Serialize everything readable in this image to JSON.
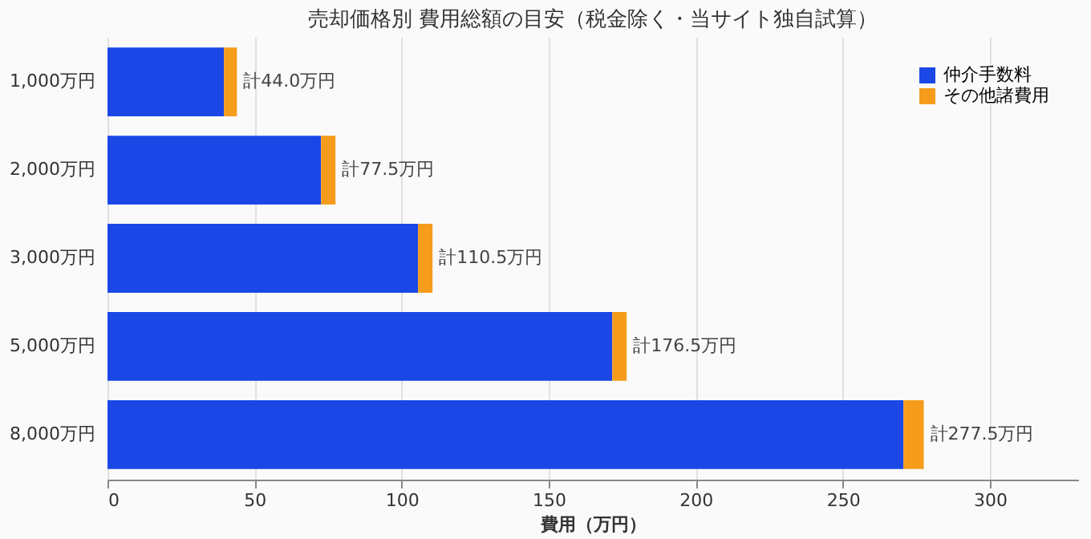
{
  "chart_data": {
    "type": "bar",
    "orientation": "horizontal",
    "stacked": true,
    "title": "売却価格別 費用総額の目安（税金除く・当サイト独自試算）",
    "xlabel": "費用（万円）",
    "categories": [
      "1,000万円",
      "2,000万円",
      "3,000万円",
      "5,000万円",
      "8,000万円"
    ],
    "series": [
      {
        "name": "仲介手数料",
        "color": "#1a47e6",
        "values": [
          39.6,
          72.6,
          105.6,
          171.6,
          270.6
        ]
      },
      {
        "name": "その他諸費用",
        "color": "#f59c1a",
        "values": [
          4.4,
          4.9,
          4.9,
          4.9,
          6.9
        ]
      }
    ],
    "totals": [
      "計44.0万円",
      "計77.5万円",
      "計110.5万円",
      "計176.5万円",
      "計277.5万円"
    ],
    "xlim": [
      0,
      330
    ],
    "xticks": [
      0,
      50,
      100,
      150,
      200,
      250,
      300
    ],
    "grid": "x",
    "legend": "top right"
  }
}
